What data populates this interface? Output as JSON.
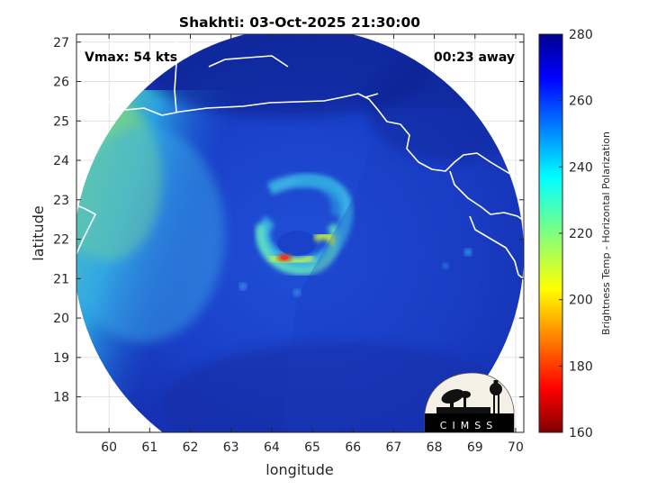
{
  "title": "Shakhti: 03-Oct-2025 21:30:00",
  "annotations": {
    "vmax": "Vmax: 54 kts",
    "away": "00:23 away"
  },
  "axes": {
    "xlabel": "longitude",
    "ylabel": "latitude",
    "xticks": [
      "60",
      "61",
      "62",
      "63",
      "64",
      "65",
      "66",
      "67",
      "68",
      "69",
      "70"
    ],
    "yticks": [
      "27",
      "26",
      "25",
      "24",
      "23",
      "22",
      "21",
      "20",
      "19",
      "18"
    ],
    "xlim": [
      59.2,
      70.2
    ],
    "ylim": [
      17.1,
      27.2
    ],
    "grid": true
  },
  "colorbar": {
    "label": "Brightness Temp - Horizontal Polarization",
    "ticks": [
      "280",
      "260",
      "240",
      "220",
      "200",
      "180",
      "160"
    ],
    "range": [
      160,
      280
    ],
    "colormap": "jet"
  },
  "logo": {
    "text": "CIMSS"
  },
  "colors": {
    "background_cold": "#1a3ac8",
    "deep_blue": "#0c1f8a",
    "land_warm": "#2a8ee0",
    "hot_band": "#7fe07a",
    "eye_red": "#e03010"
  }
}
